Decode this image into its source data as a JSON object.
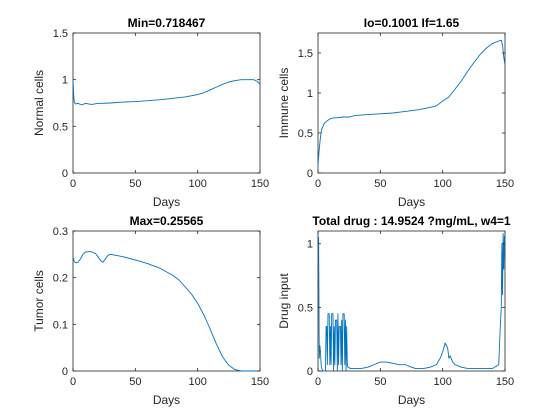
{
  "chart_data": [
    {
      "type": "line",
      "title": "Min=0.718467",
      "xlabel": "Days",
      "ylabel": "Normal cells",
      "xlim": [
        0,
        150
      ],
      "ylim": [
        0,
        1.5
      ],
      "xticks": [
        0,
        50,
        100,
        150
      ],
      "yticks": [
        0,
        0.5,
        1,
        1.5
      ],
      "xtick_labels": [
        "0",
        "50",
        "100",
        "150"
      ],
      "ytick_labels": [
        "0",
        "0.5",
        "1",
        "1.5"
      ],
      "grid": false,
      "series": [
        {
          "color": "#0072bd",
          "x": [
            0,
            0.5,
            1,
            2,
            4,
            7,
            10,
            15,
            20,
            30,
            40,
            50,
            60,
            70,
            80,
            90,
            100,
            105,
            110,
            115,
            120,
            125,
            130,
            135,
            140,
            145,
            148,
            150
          ],
          "y": [
            1.0,
            0.85,
            0.76,
            0.74,
            0.745,
            0.73,
            0.745,
            0.735,
            0.745,
            0.75,
            0.76,
            0.765,
            0.775,
            0.785,
            0.8,
            0.815,
            0.84,
            0.86,
            0.89,
            0.92,
            0.95,
            0.975,
            0.99,
            1.0,
            1.0,
            1.0,
            0.98,
            0.95
          ]
        }
      ]
    },
    {
      "type": "line",
      "title": "Io=0.1001 If=1.65",
      "xlabel": "Days",
      "ylabel": "Immune cells",
      "xlim": [
        0,
        150
      ],
      "ylim": [
        0,
        1.75
      ],
      "xticks": [
        0,
        50,
        100,
        150
      ],
      "yticks": [
        0,
        0.5,
        1,
        1.5
      ],
      "xtick_labels": [
        "0",
        "50",
        "100",
        "150"
      ],
      "ytick_labels": [
        "0",
        "0.5",
        "1",
        "1.5"
      ],
      "grid": false,
      "series": [
        {
          "color": "#0072bd",
          "x": [
            0,
            1,
            2,
            3,
            5,
            8,
            10,
            13,
            15,
            20,
            25,
            30,
            40,
            50,
            60,
            70,
            80,
            90,
            95,
            100,
            105,
            110,
            115,
            120,
            125,
            130,
            135,
            140,
            145,
            147,
            148,
            149,
            150
          ],
          "y": [
            0.1,
            0.3,
            0.45,
            0.55,
            0.62,
            0.66,
            0.68,
            0.69,
            0.69,
            0.7,
            0.7,
            0.72,
            0.73,
            0.74,
            0.75,
            0.77,
            0.79,
            0.82,
            0.84,
            0.9,
            0.95,
            1.05,
            1.15,
            1.27,
            1.38,
            1.48,
            1.56,
            1.62,
            1.65,
            1.66,
            1.6,
            1.45,
            1.35
          ]
        }
      ]
    },
    {
      "type": "line",
      "title": "Max=0.25565",
      "xlabel": "Days",
      "ylabel": "Tumor cells",
      "xlim": [
        0,
        150
      ],
      "ylim": [
        0,
        0.3
      ],
      "xticks": [
        0,
        50,
        100,
        150
      ],
      "yticks": [
        0,
        0.1,
        0.2,
        0.3
      ],
      "xtick_labels": [
        "0",
        "50",
        "100",
        "150"
      ],
      "ytick_labels": [
        "0",
        "0.1",
        "0.2",
        "0.3"
      ],
      "grid": false,
      "series": [
        {
          "color": "#0072bd",
          "x": [
            0,
            1,
            2,
            4,
            6,
            8,
            10,
            13,
            15,
            18,
            20,
            22,
            24,
            26,
            28,
            30,
            40,
            50,
            60,
            70,
            80,
            85,
            90,
            95,
            100,
            105,
            110,
            115,
            120,
            125,
            130,
            135,
            140,
            150
          ],
          "y": [
            0.245,
            0.235,
            0.232,
            0.233,
            0.24,
            0.25,
            0.255,
            0.256,
            0.255,
            0.252,
            0.245,
            0.237,
            0.233,
            0.24,
            0.248,
            0.25,
            0.245,
            0.238,
            0.23,
            0.22,
            0.205,
            0.195,
            0.18,
            0.165,
            0.145,
            0.12,
            0.09,
            0.058,
            0.03,
            0.012,
            0.003,
            0.0,
            0.0,
            0.0
          ]
        }
      ]
    },
    {
      "type": "line",
      "title": "Total drug : 14.9524 ?mg/mL, w4=1",
      "xlabel": "Days",
      "ylabel": "Drug input",
      "xlim": [
        0,
        150
      ],
      "ylim": [
        0,
        1.1
      ],
      "xticks": [
        0,
        50,
        100,
        150
      ],
      "yticks": [
        0,
        0.5,
        1
      ],
      "xtick_labels": [
        "0",
        "50",
        "100",
        "150"
      ],
      "ytick_labels": [
        "0",
        "0.5",
        "1"
      ],
      "grid": false,
      "series": [
        {
          "color": "#0072bd",
          "x": [
            0,
            0.5,
            1,
            1.5,
            2,
            2.5,
            3,
            4,
            5,
            6,
            6.5,
            7,
            7.5,
            8,
            9,
            9.5,
            10,
            10.5,
            11,
            12,
            12.5,
            13,
            13.5,
            14,
            15,
            15.5,
            16,
            16.5,
            17,
            18,
            18.5,
            19,
            19.5,
            20,
            21,
            21.5,
            22,
            22.5,
            23,
            23.5,
            24,
            26,
            30,
            35,
            40,
            45,
            50,
            55,
            60,
            65,
            70,
            75,
            78,
            80,
            85,
            90,
            95,
            98,
            100,
            102,
            104,
            105,
            106,
            108,
            110,
            115,
            120,
            125,
            130,
            135,
            140,
            145,
            146,
            147,
            147.5,
            148,
            148.5,
            149,
            149.5,
            150
          ],
          "y": [
            1.05,
            1.05,
            0.1,
            0.2,
            0.15,
            0.05,
            0.02,
            0.0,
            0.0,
            0.0,
            0.35,
            0.35,
            0.05,
            0.45,
            0.45,
            0.05,
            0.35,
            0.05,
            0.45,
            0.45,
            0.0,
            0.35,
            0.05,
            0.4,
            0.4,
            0.0,
            0.45,
            0.05,
            0.35,
            0.35,
            0.05,
            0.4,
            0.0,
            0.45,
            0.45,
            0.05,
            0.4,
            0.0,
            0.35,
            0.05,
            0.03,
            0.02,
            0.02,
            0.02,
            0.03,
            0.05,
            0.07,
            0.07,
            0.06,
            0.05,
            0.05,
            0.03,
            0.02,
            0.02,
            0.02,
            0.03,
            0.05,
            0.1,
            0.15,
            0.22,
            0.18,
            0.1,
            0.12,
            0.07,
            0.05,
            0.03,
            0.02,
            0.02,
            0.02,
            0.02,
            0.02,
            0.05,
            0.3,
            0.5,
            1.0,
            0.6,
            1.08,
            0.8,
            1.06,
            1.0
          ]
        }
      ]
    }
  ]
}
